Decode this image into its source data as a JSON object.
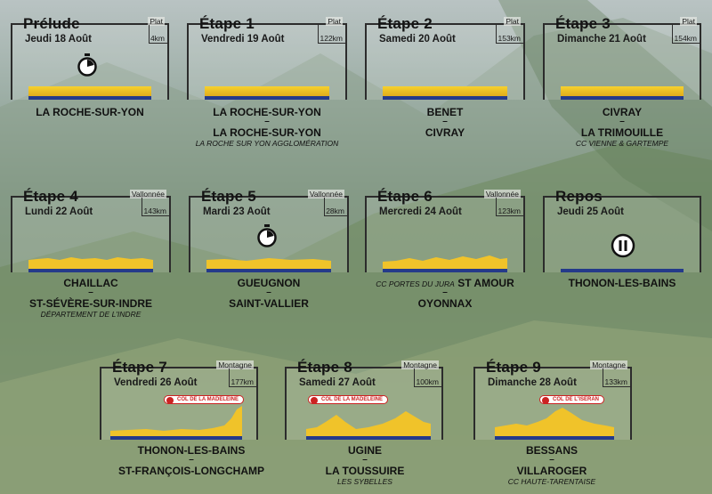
{
  "stages": [
    {
      "name": "Prélude",
      "date": "Jeudi 18 Août",
      "type": "Plat",
      "distance": "4km",
      "icon": "stopwatch-icon",
      "cities": [
        "LA ROCHE-SUR-YON"
      ],
      "sub": ""
    },
    {
      "name": "Étape 1",
      "date": "Vendredi 19 Août",
      "type": "Plat",
      "distance": "122km",
      "icon": "",
      "cities": [
        "LA ROCHE-SUR-YON",
        "LA ROCHE-SUR-YON"
      ],
      "sub": "LA ROCHE SUR YON AGGLOMÉRATION"
    },
    {
      "name": "Étape 2",
      "date": "Samedi 20 Août",
      "type": "Plat",
      "distance": "153km",
      "icon": "",
      "cities": [
        "BENET",
        "CIVRAY"
      ],
      "sub": ""
    },
    {
      "name": "Étape 3",
      "date": "Dimanche 21 Août",
      "type": "Plat",
      "distance": "154km",
      "icon": "",
      "cities": [
        "CIVRAY",
        "LA TRIMOUILLE"
      ],
      "sub": "CC VIENNE & GARTEMPE"
    },
    {
      "name": "Étape 4",
      "date": "Lundi 22 Août",
      "type": "Vallonnée",
      "distance": "143km",
      "icon": "",
      "cities": [
        "CHAILLAC",
        "ST-SÉVÈRE-SUR-INDRE"
      ],
      "sub": "DÉPARTEMENT DE L'INDRE"
    },
    {
      "name": "Étape 5",
      "date": "Mardi 23 Août",
      "type": "Vallonnée",
      "distance": "28km",
      "icon": "stopwatch-icon",
      "cities": [
        "GUEUGNON",
        "SAINT-VALLIER"
      ],
      "sub": ""
    },
    {
      "name": "Étape 6",
      "date": "Mercredi 24 Août",
      "type": "Vallonnée",
      "distance": "123km",
      "icon": "",
      "cities": [
        "ST AMOUR",
        "OYONNAX"
      ],
      "sub": "CC PORTES DU JURA"
    },
    {
      "name": "Repos",
      "date": "Jeudi 25 Août",
      "type": "",
      "distance": "",
      "icon": "pause-icon",
      "cities": [
        "THONON-LES-BAINS"
      ],
      "sub": ""
    },
    {
      "name": "Étape 7",
      "date": "Vendredi 26 Août",
      "type": "Montagne",
      "distance": "177km",
      "icon": "",
      "pass": "COL DE LA MADELEINE",
      "cities": [
        "THONON-LES-BAINS",
        "ST-FRANÇOIS-LONGCHAMP"
      ],
      "sub": ""
    },
    {
      "name": "Étape 8",
      "date": "Samedi 27 Août",
      "type": "Montagne",
      "distance": "100km",
      "icon": "",
      "pass": "COL DE LA MADELEINE",
      "cities": [
        "UGINE",
        "LA TOUSSUIRE"
      ],
      "sub": "LES SYBELLES"
    },
    {
      "name": "Étape 9",
      "date": "Dimanche 28 Août",
      "type": "Montagne",
      "distance": "133km",
      "icon": "",
      "pass": "COL DE L'ISERAN",
      "cities": [
        "BESSANS",
        "VILLAROGER"
      ],
      "sub": "CC HAUTE-TARENTAISE"
    }
  ],
  "colors": {
    "accent_yellow": "#f2c72a",
    "base_blue": "#243a8a",
    "pin_red": "#cc2222"
  }
}
